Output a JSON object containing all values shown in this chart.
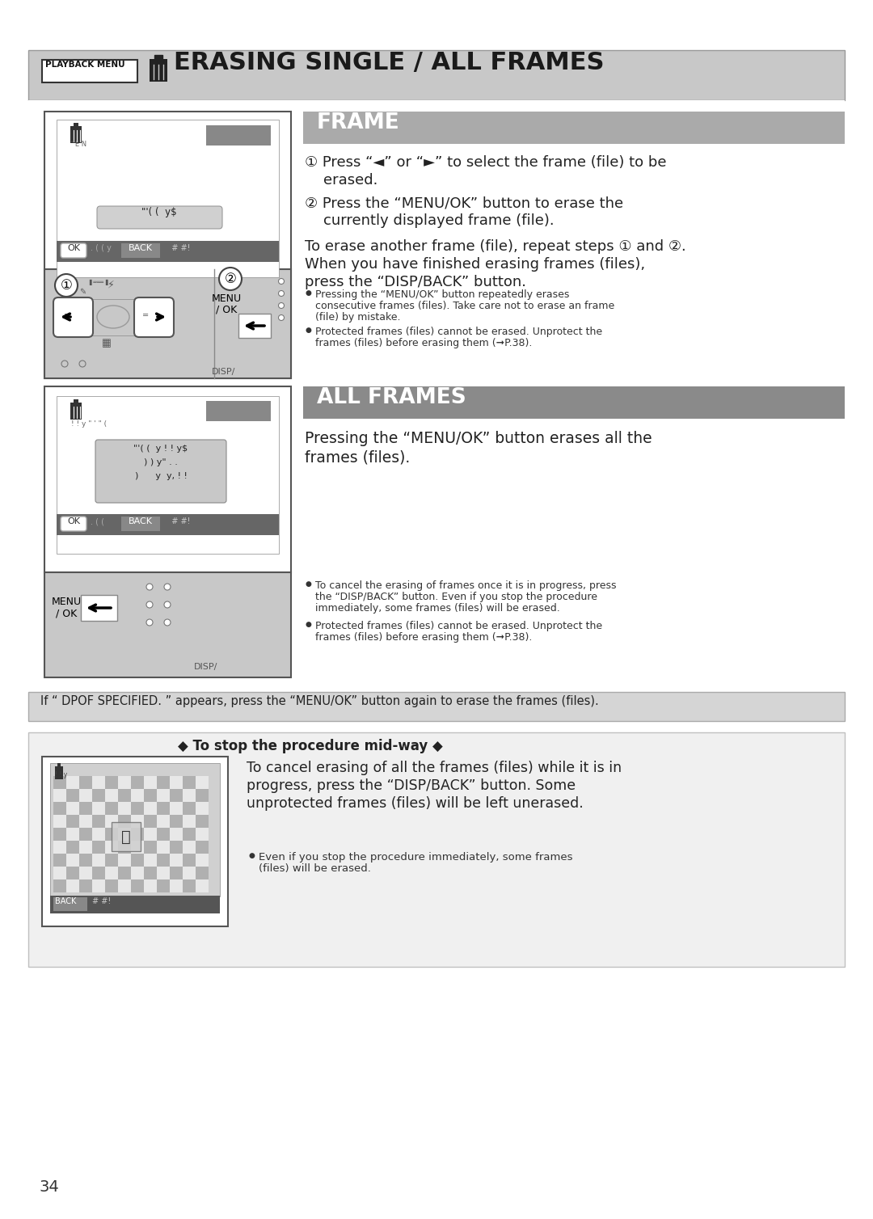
{
  "page_bg": "#ffffff",
  "outer_bg": "#d0d0d0",
  "header_bg": "#c8c8c8",
  "header_text": "ERASING SINGLE / ALL FRAMES",
  "header_label": "PLAYBACK MENU",
  "section1_title": "FRAME",
  "section1_title_bg": "#aaaaaa",
  "section2_title": "ALL FRAMES",
  "section2_title_bg": "#8a8a8a",
  "page_number": "34",
  "frame1_line1": "① Press “◄” or “►” to select the frame (file) to be",
  "frame1_line1b": "    erased.",
  "frame1_line2": "② Press the “MENU/OK” button to erase the",
  "frame1_line2b": "    currently displayed frame (file).",
  "frame1_line3": "To erase another frame (file), repeat steps ① and ②.",
  "frame1_line4": "When you have finished erasing frames (files),",
  "frame1_line5": "press the “DISP/BACK” button.",
  "frame1_note1a": "Pressing the “MENU/OK” button repeatedly erases",
  "frame1_note1b": "consecutive frames (files). Take care not to erase an frame",
  "frame1_note1c": "(file) by mistake.",
  "frame1_note2a": "Protected frames (files) cannot be erased. Unprotect the",
  "frame1_note2b": "frames (files) before erasing them (➞P.38).",
  "frame2_line1": "Pressing the “MENU/OK” button erases all the",
  "frame2_line2": "frames (files).",
  "frame2_note1a": "To cancel the erasing of frames once it is in progress, press",
  "frame2_note1b": "the “DISP/BACK” button. Even if you stop the procedure",
  "frame2_note1c": "immediately, some frames (files) will be erased.",
  "frame2_note2a": "Protected frames (files) cannot be erased. Unprotect the",
  "frame2_note2b": "frames (files) before erasing them (➞P.38).",
  "dpof_notice": "If “ DPOF SPECIFIED. ” appears, press the “MENU/OK” button again to erase the frames (files).",
  "stop_midway_title": "◆ To stop the procedure mid-way ◆",
  "stop_midway_line1": "To cancel erasing of all the frames (files) while it is in",
  "stop_midway_line2": "progress, press the “DISP/BACK” button. Some",
  "stop_midway_line3": "unprotected frames (files) will be left unerased.",
  "stop_midway_note1": "Even if you stop the procedure immediately, some frames",
  "stop_midway_note2": "(files) will be erased."
}
